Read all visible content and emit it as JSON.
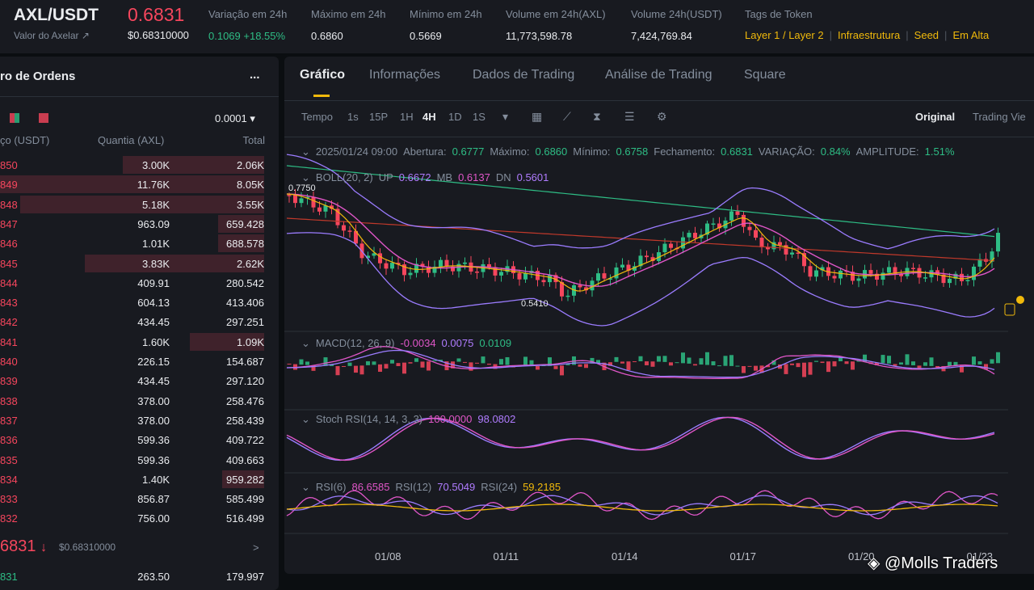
{
  "header": {
    "pair": "AXL/USDT",
    "price": "0.6831",
    "subtitle": "Valor do Axelar ↗",
    "price_usd": "$0.68310000",
    "stats": [
      {
        "label": "Variação em 24h",
        "value": "0.1069 +18.55%",
        "color": "#2ebd85"
      },
      {
        "label": "Máximo em 24h",
        "value": "0.6860"
      },
      {
        "label": "Mínimo em 24h",
        "value": "0.5669"
      },
      {
        "label": "Volume em 24h(AXL)",
        "value": "11,773,598.78"
      },
      {
        "label": "Volume 24h(USDT)",
        "value": "7,424,769.84"
      }
    ],
    "tags_label": "Tags de Token",
    "tags": [
      "Layer 1 / Layer 2",
      "Infraestrutura",
      "Seed",
      "Em Alta"
    ]
  },
  "order_book": {
    "title": "ro de Ordens",
    "menu": "...",
    "precision": "0.0001",
    "columns": [
      "ço (USDT)",
      "Quantia (AXL)",
      "Total"
    ],
    "asks": [
      [
        "850",
        "3.00K",
        "2.06K"
      ],
      [
        "849",
        "11.76K",
        "8.05K"
      ],
      [
        "848",
        "5.18K",
        "3.55K"
      ],
      [
        "847",
        "963.09",
        "659.428"
      ],
      [
        "846",
        "1.01K",
        "688.578"
      ],
      [
        "845",
        "3.83K",
        "2.62K"
      ],
      [
        "844",
        "409.91",
        "280.542"
      ],
      [
        "843",
        "604.13",
        "413.406"
      ],
      [
        "842",
        "434.45",
        "297.251"
      ],
      [
        "841",
        "1.60K",
        "1.09K"
      ],
      [
        "840",
        "226.15",
        "154.687"
      ],
      [
        "839",
        "434.45",
        "297.120"
      ],
      [
        "838",
        "378.00",
        "258.476"
      ],
      [
        "837",
        "378.00",
        "258.439"
      ],
      [
        "836",
        "599.36",
        "409.722"
      ],
      [
        "835",
        "599.36",
        "409.663"
      ],
      [
        "834",
        "1.40K",
        "959.282"
      ],
      [
        "833",
        "856.87",
        "585.499"
      ],
      [
        "832",
        "756.00",
        "516.499"
      ]
    ],
    "last_price": "6831",
    "last_arrow": "↓",
    "last_price_usd": "$0.68310000",
    "more": ">",
    "bids": [
      [
        "831",
        "263.50",
        "179.997"
      ]
    ]
  },
  "chart_panel": {
    "tabs": [
      "Gráfico",
      "Informações",
      "Dados de Trading",
      "Análise de Trading",
      "Square"
    ],
    "intervals": [
      "Tempo",
      "1s",
      "15P",
      "1H",
      "4H",
      "1D",
      "1S"
    ],
    "views": [
      "Original",
      "Trading Vie"
    ],
    "ohlc": {
      "date": "2025/01/24 09:00",
      "items": [
        {
          "label": "Abertura:",
          "value": "0.6777"
        },
        {
          "label": "Máximo:",
          "value": "0.6860"
        },
        {
          "label": "Mínimo:",
          "value": "0.6758"
        },
        {
          "label": "Fechamento:",
          "value": "0.6831"
        },
        {
          "label": "VARIAÇÃO:",
          "value": "0.84%"
        },
        {
          "label": "AMPLITUDE:",
          "value": "1.51%"
        }
      ]
    },
    "indicators": [
      {
        "name": "BOLL(20, 2)",
        "items": [
          {
            "label": "UP",
            "value": "0.6672",
            "color": "#b07cff"
          },
          {
            "label": "MB",
            "value": "0.6137",
            "color": "#e056c8"
          },
          {
            "label": "DN",
            "value": "0.5601",
            "color": "#b07cff"
          }
        ]
      },
      {
        "name": "MACD(12, 26, 9)",
        "items": [
          {
            "value": "-0.0034",
            "color": "#e056c8"
          },
          {
            "value": "0.0075",
            "color": "#b07cff"
          },
          {
            "value": "0.0109",
            "color": "#2ebd85"
          }
        ]
      },
      {
        "name": "Stoch RSI(14, 14, 3, 3)",
        "items": [
          {
            "value": "100.0000",
            "color": "#e056c8"
          },
          {
            "value": "98.0802",
            "color": "#b07cff"
          }
        ]
      },
      {
        "name": "RSI(6)",
        "items": [
          {
            "value": "86.6585",
            "color": "#e056c8"
          },
          {
            "label": "RSI(12)",
            "value": "70.5049",
            "color": "#b07cff"
          },
          {
            "label": "RSI(24)",
            "value": "59.2185",
            "color": "#f0b90b"
          }
        ]
      }
    ],
    "price_labels": [
      "0.7750",
      "0.5410"
    ],
    "x_labels": [
      "01/08",
      "01/11",
      "01/14",
      "01/17",
      "01/20",
      "01/23"
    ]
  },
  "watermark": "@Molls Traders"
}
